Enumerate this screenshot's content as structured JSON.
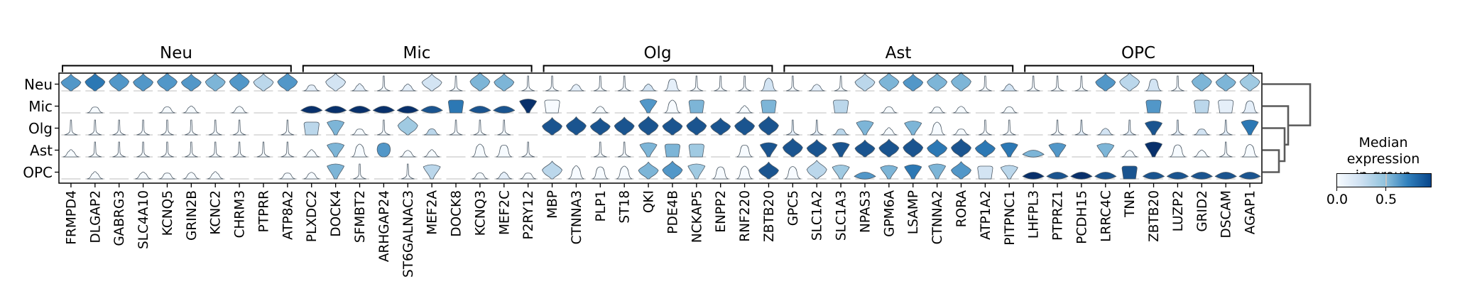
{
  "rows": [
    "Neu",
    "Mic",
    "Olg",
    "Ast",
    "OPC"
  ],
  "groups": [
    {
      "label": "Neu",
      "genes": [
        "FRMPD4",
        "DLGAP2",
        "GABRG3",
        "SLC4A10",
        "KCNQ5",
        "GRIN2B",
        "KCNC2",
        "CHRM3",
        "PTPRR",
        "ATP8A2"
      ]
    },
    {
      "label": "Mic",
      "genes": [
        "PLXDC2",
        "DOCK4",
        "SFMBT2",
        "ARHGAP24",
        "ST6GALNAC3",
        "MEF2A",
        "DOCK8",
        "KCNQ3",
        "MEF2C",
        "P2RY12"
      ]
    },
    {
      "label": "Olg",
      "genes": [
        "MBP",
        "CTNNA3",
        "PLP1",
        "ST18",
        "QKI",
        "PDE4B",
        "NCKAP5",
        "ENPP2",
        "RNF220",
        "ZBTB20"
      ]
    },
    {
      "label": "Ast",
      "genes": [
        "GPC5",
        "SLC1A2",
        "SLC1A3",
        "NPAS3",
        "GPM6A",
        "LSAMP",
        "CTNNA2",
        "RORA",
        "ATP1A2",
        "PITPNC1"
      ]
    },
    {
      "label": "OPC",
      "genes": [
        "LHFPL3",
        "PTPRZ1",
        "PCDH15",
        "LRRC4C",
        "TNR",
        "ZBTB20",
        "LUZP2",
        "GRID2",
        "DSCAM",
        "AGAP1"
      ]
    }
  ],
  "cells": {
    "Neu": [
      "d6",
      "d7",
      "d6",
      "d6",
      "d6",
      "d6",
      "d5",
      "d6",
      "d3",
      "d6",
      "b1",
      "d2",
      "b1",
      "s0",
      "b1",
      "d2",
      "s0",
      "d5",
      "d5",
      "s0",
      "s0",
      "b1",
      "s0",
      "s0",
      "b2",
      "B1",
      "s0",
      "s0",
      "s0",
      "B2",
      "s0",
      "b1",
      "s0",
      "d3",
      "d5",
      "d6",
      "d5",
      "d5",
      "s0",
      "b2",
      "s0",
      "s0",
      "s0",
      "d6",
      "d3",
      "B2",
      "s0",
      "d5",
      "d5",
      "d4"
    ],
    "Mic": [
      "l0",
      "b0",
      "l0",
      "l0",
      "b0",
      "b0",
      "l0",
      "b0",
      "l0",
      "l0",
      "w9",
      "w9",
      "w9",
      "w9",
      "w9",
      "w8",
      "k7",
      "w8",
      "w8",
      "t9",
      "k0",
      "l0",
      "b0",
      "l0",
      "t6",
      "B0",
      "k5",
      "l0",
      "b0",
      "k5",
      "l0",
      "l0",
      "k3",
      "l0",
      "b0",
      "l0",
      "b0",
      "b0",
      "l0",
      "b0",
      "l0",
      "l0",
      "l0",
      "l0",
      "l0",
      "k6",
      "l0",
      "k3",
      "k1",
      "B1"
    ],
    "Olg": [
      "s0",
      "s0",
      "s0",
      "s0",
      "s0",
      "s0",
      "s0",
      "s0",
      "l0",
      "s0",
      "k3",
      "t5",
      "b0",
      "s0",
      "d4",
      "b3",
      "s0",
      "s0",
      "s0",
      "l0",
      "d8",
      "d8",
      "d8",
      "d8",
      "d8",
      "d8",
      "d8",
      "d8",
      "d8",
      "d8",
      "s1",
      "s1",
      "b3",
      "t5",
      "b0",
      "t5",
      "B0",
      "b0",
      "s0",
      "s0",
      "l0",
      "s0",
      "s1",
      "b2",
      "s1",
      "t8",
      "s1",
      "b2",
      "s1",
      "t7"
    ],
    "Ast": [
      "b0",
      "s0",
      "s0",
      "s0",
      "s0",
      "s0",
      "s0",
      "s0",
      "s0",
      "s0",
      "b0",
      "t5",
      "B0",
      "e6",
      "b0",
      "b0",
      "l0",
      "B0",
      "B0",
      "s0",
      "l0",
      "l0",
      "s0",
      "s0",
      "t5",
      "k5",
      "k4",
      "l0",
      "B0",
      "t8",
      "d8",
      "d8",
      "t8",
      "d8",
      "d8",
      "d8",
      "d7",
      "d8",
      "d7",
      "t7",
      "w5",
      "t6",
      "l0",
      "t5",
      "b0",
      "t9",
      "B0",
      "b0",
      "s0",
      "B0"
    ],
    "OPC": [
      "l0",
      "b0",
      "l0",
      "b0",
      "b0",
      "b0",
      "b0",
      "l0",
      "l0",
      "b0",
      "b0",
      "t5",
      "s0",
      "l0",
      "s0",
      "t3",
      "l0",
      "b0",
      "b1",
      "b0",
      "d3",
      "B0",
      "B0",
      "B0",
      "d5",
      "d6",
      "t4",
      "B0",
      "B0",
      "d8",
      "B0",
      "d3",
      "t4",
      "w6",
      "t5",
      "t7",
      "t5",
      "d6",
      "k2",
      "t3",
      "w9",
      "w8",
      "w9",
      "w8",
      "k8",
      "w8",
      "w8",
      "w8",
      "w8",
      "w8"
    ]
  },
  "colorbar": {
    "title_line1": "Median expression",
    "title_line2": "in group",
    "tick_labels": [
      "0.0",
      "0.5"
    ],
    "gradient_start": "#f7fbff",
    "gradient_end": "#08468b"
  },
  "palette": {
    "blues_stops": [
      "#f7fbff",
      "#cfe1f2",
      "#93c4de",
      "#3181bd",
      "#08306b"
    ],
    "violin_outline": "#4d5a66",
    "baseline_gray": "#d9d9d9",
    "dendrogram_gray": "#5a5a5a",
    "frame_black": "#000000"
  },
  "chart_data": {
    "type": "stacked_violin",
    "title": "",
    "xlabel": "",
    "ylabel": "",
    "row_labels": [
      "Neu",
      "Mic",
      "Olg",
      "Ast",
      "OPC"
    ],
    "gene_groups": {
      "Neu": [
        "FRMPD4",
        "DLGAP2",
        "GABRG3",
        "SLC4A10",
        "KCNQ5",
        "GRIN2B",
        "KCNC2",
        "CHRM3",
        "PTPRR",
        "ATP8A2"
      ],
      "Mic": [
        "PLXDC2",
        "DOCK4",
        "SFMBT2",
        "ARHGAP24",
        "ST6GALNAC3",
        "MEF2A",
        "DOCK8",
        "KCNQ3",
        "MEF2C",
        "P2RY12"
      ],
      "Olg": [
        "MBP",
        "CTNNA3",
        "PLP1",
        "ST18",
        "QKI",
        "PDE4B",
        "NCKAP5",
        "ENPP2",
        "RNF220",
        "ZBTB20"
      ],
      "Ast": [
        "GPC5",
        "SLC1A2",
        "SLC1A3",
        "NPAS3",
        "GPM6A",
        "LSAMP",
        "CTNNA2",
        "RORA",
        "ATP1A2",
        "PITPNC1"
      ],
      "OPC": [
        "LHFPL3",
        "PTPRZ1",
        "PCDH15",
        "LRRC4C",
        "TNR",
        "ZBTB20",
        "LUZP2",
        "GRID2",
        "DSCAM",
        "AGAP1"
      ]
    },
    "colorbar": {
      "label": "Median expression in group",
      "ticks": [
        0.0,
        0.5
      ]
    },
    "median_expression": {
      "Neu": [
        0.63,
        0.73,
        0.63,
        0.63,
        0.63,
        0.63,
        0.52,
        0.63,
        0.31,
        0.63,
        0.1,
        0.21,
        0.1,
        0,
        0.1,
        0.21,
        0,
        0.52,
        0.52,
        0,
        0,
        0.1,
        0,
        0,
        0.21,
        0.1,
        0,
        0,
        0,
        0.21,
        0,
        0.1,
        0,
        0.31,
        0.52,
        0.63,
        0.52,
        0.52,
        0,
        0.21,
        0,
        0,
        0,
        0.63,
        0.31,
        0.21,
        0,
        0.52,
        0.52,
        0.42
      ],
      "Mic": [
        0,
        0,
        0,
        0,
        0,
        0,
        0,
        0,
        0,
        0,
        0.94,
        0.94,
        0.94,
        0.94,
        0.94,
        0.84,
        0.73,
        0.84,
        0.84,
        0.94,
        0,
        0,
        0,
        0,
        0.63,
        0,
        0.52,
        0,
        0,
        0.52,
        0,
        0,
        0.31,
        0,
        0,
        0,
        0,
        0,
        0,
        0,
        0,
        0,
        0,
        0,
        0,
        0.63,
        0,
        0.31,
        0.1,
        0.1
      ],
      "Olg": [
        0,
        0,
        0,
        0,
        0,
        0,
        0,
        0,
        0,
        0,
        0.31,
        0.52,
        0,
        0,
        0.42,
        0.31,
        0,
        0,
        0,
        0,
        0.84,
        0.84,
        0.84,
        0.84,
        0.84,
        0.84,
        0.84,
        0.84,
        0.84,
        0.84,
        0.1,
        0.1,
        0.31,
        0.52,
        0,
        0.52,
        0,
        0,
        0,
        0,
        0,
        0,
        0.1,
        0.21,
        0.1,
        0.84,
        0.1,
        0.21,
        0.1,
        0.73
      ],
      "Ast": [
        0,
        0,
        0,
        0,
        0,
        0,
        0,
        0,
        0,
        0,
        0,
        0.52,
        0,
        0.63,
        0,
        0,
        0,
        0,
        0,
        0,
        0,
        0,
        0,
        0,
        0.52,
        0.52,
        0.42,
        0,
        0,
        0.84,
        0.84,
        0.84,
        0.84,
        0.84,
        0.84,
        0.84,
        0.73,
        0.84,
        0.73,
        0.73,
        0.52,
        0.63,
        0,
        0.52,
        0,
        0.94,
        0,
        0,
        0,
        0
      ],
      "OPC": [
        0,
        0,
        0,
        0,
        0,
        0,
        0,
        0,
        0,
        0,
        0,
        0.52,
        0,
        0,
        0,
        0.31,
        0,
        0,
        0.1,
        0,
        0.31,
        0,
        0,
        0,
        0.52,
        0.63,
        0.42,
        0,
        0,
        0.84,
        0,
        0.31,
        0.42,
        0.63,
        0.52,
        0.73,
        0.52,
        0.63,
        0.21,
        0.31,
        0.94,
        0.84,
        0.94,
        0.84,
        0.84,
        0.84,
        0.84,
        0.84,
        0.84,
        0.84
      ]
    },
    "dendrogram": {
      "leaves": [
        "Neu",
        "Mic",
        "Olg",
        "Ast",
        "OPC"
      ],
      "merges": [
        [
          "Ast",
          "OPC"
        ],
        [
          "Olg",
          "Ast+OPC"
        ],
        [
          "Mic",
          "Olg+Ast+OPC"
        ],
        [
          "Neu",
          "Mic+Olg+Ast+OPC"
        ]
      ],
      "position": "right"
    },
    "legend_position": "right",
    "grid": false
  }
}
